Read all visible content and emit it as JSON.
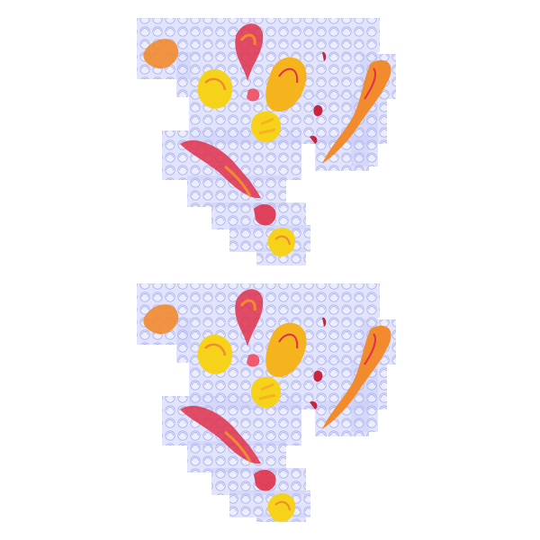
{
  "image": {
    "background": "#ffffff",
    "grid_tint": "#c9cdf7",
    "grid_stroke": "#aeb3ee",
    "palette": {
      "red": "#e0304a",
      "pink": "#ef5a6e",
      "orange": "#f28a2e",
      "amber": "#f5b31d",
      "yellow": "#f7d21a",
      "dark_red": "#c9253f"
    },
    "panels": [
      {
        "name": "upper-artwork-panel"
      },
      {
        "name": "lower-artwork-panel"
      }
    ]
  }
}
